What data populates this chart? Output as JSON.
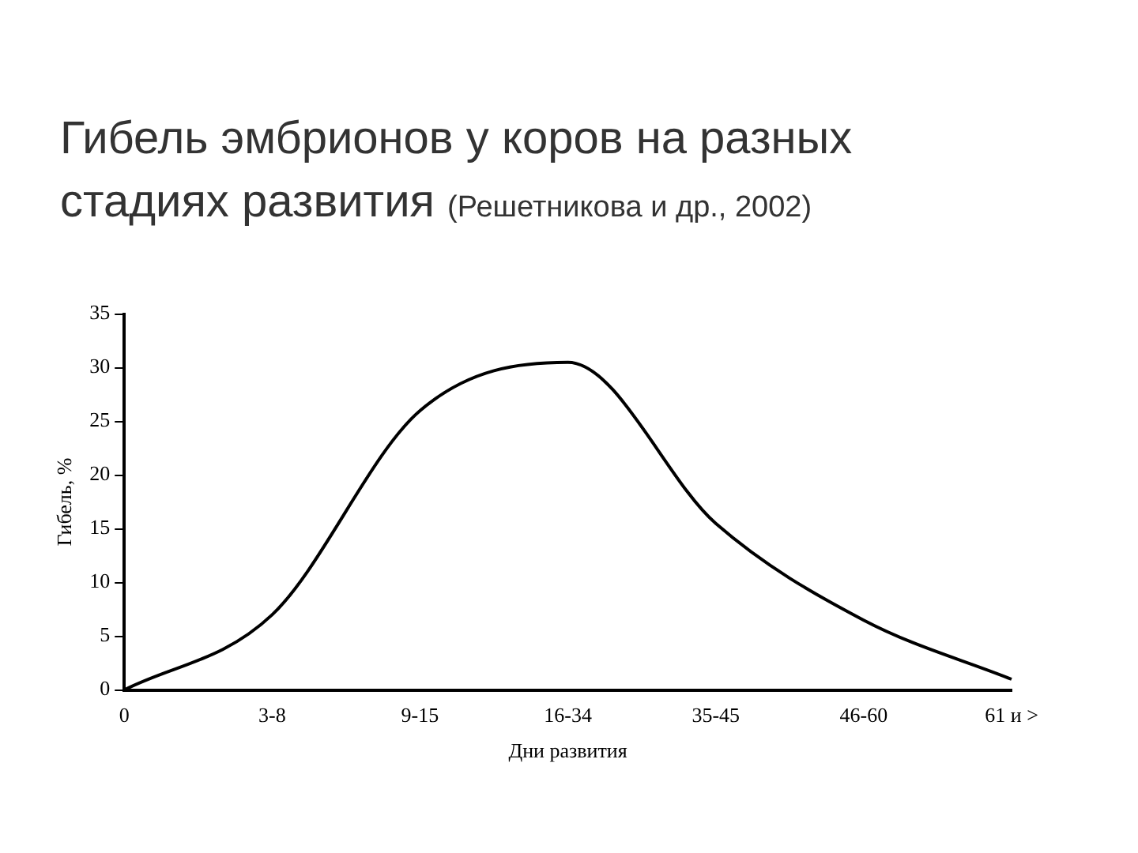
{
  "chart_data": {
    "type": "line",
    "title": "Гибель эмбрионов у коров на разных стадиях развития",
    "subtitle": "(Решетникова и др., 2002)",
    "xlabel": "Дни развития",
    "ylabel": "Гибель, %",
    "categories": [
      "0",
      "3-8",
      "9-15",
      "16-34",
      "35-45",
      "46-60",
      "61 и >"
    ],
    "series": [
      {
        "color": "#000000",
        "values": [
          0,
          7,
          26,
          30.5,
          15.5,
          6.5,
          1
        ]
      }
    ],
    "ylim": [
      0,
      35
    ],
    "yticks": [
      0,
      5,
      10,
      15,
      20,
      25,
      30,
      35
    ],
    "grid": false,
    "legend": false,
    "marker": "none",
    "line_style": "solid"
  }
}
